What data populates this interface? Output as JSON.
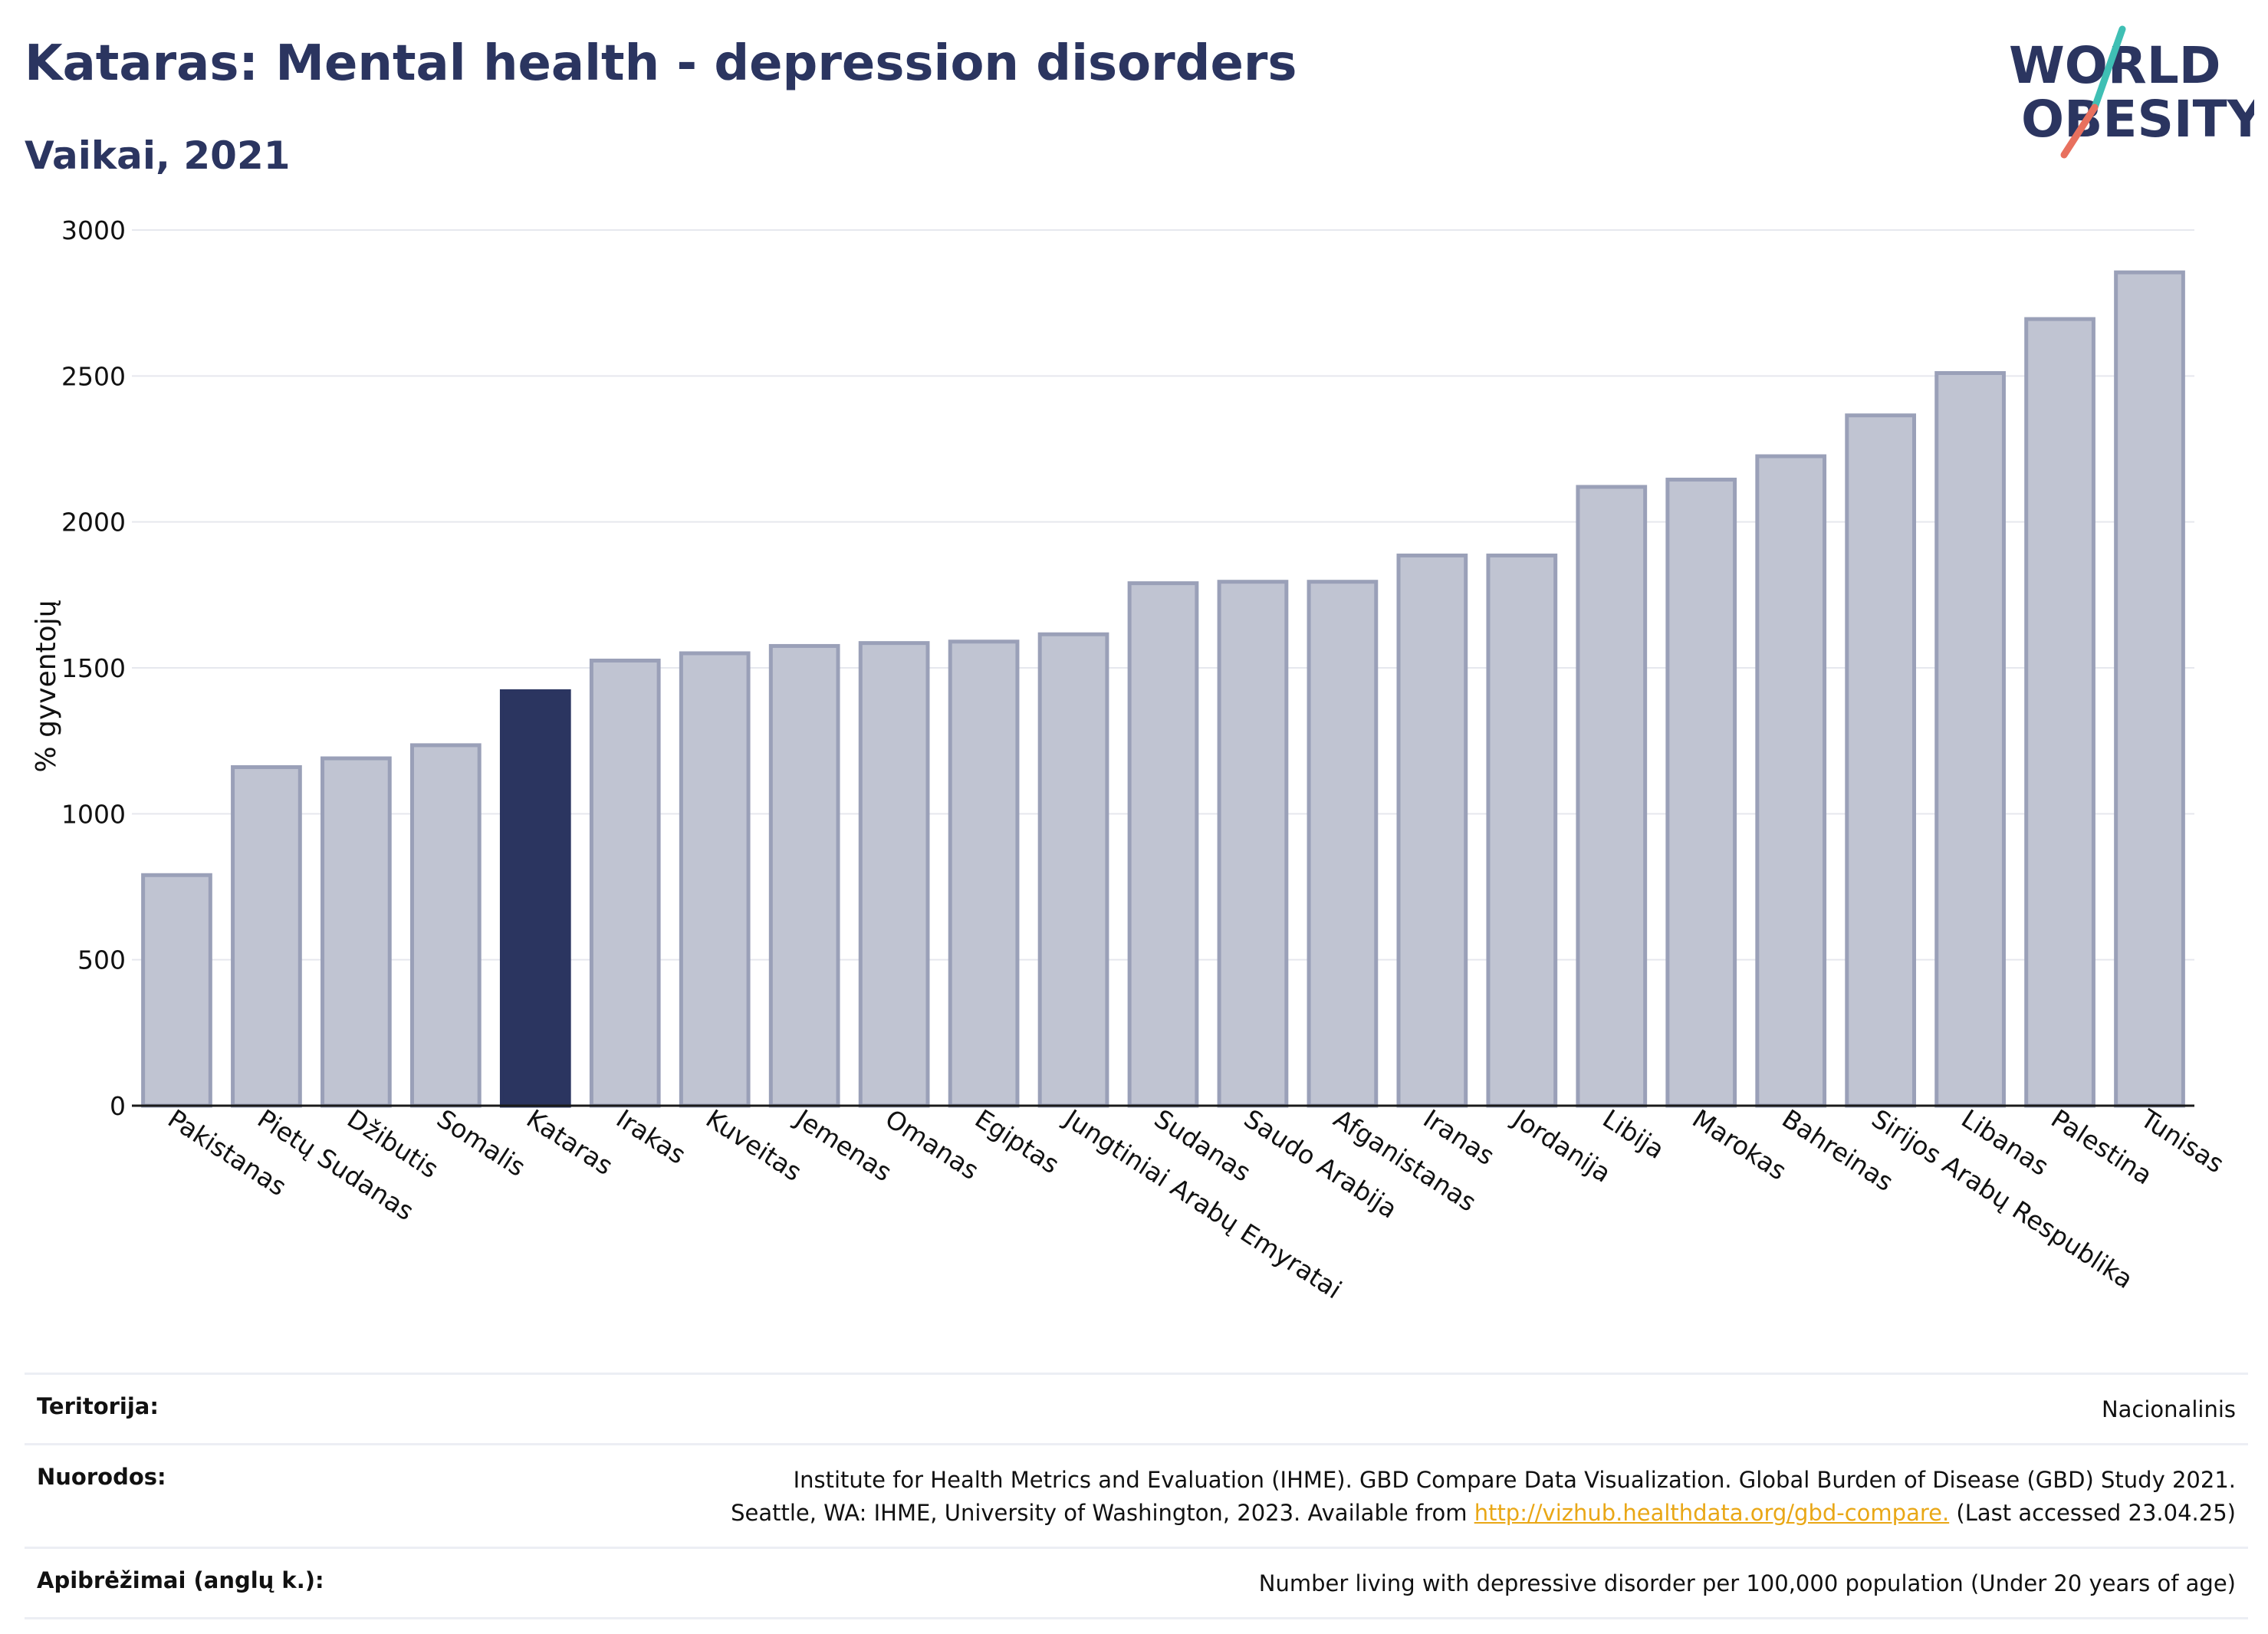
{
  "header": {
    "title": "Kataras: Mental health - depression disorders",
    "subtitle": "Vaikai, 2021"
  },
  "logo": {
    "line1": "WORLD",
    "line2": "OBESITY",
    "accent_teal": "#3fbfb4",
    "accent_coral": "#e8705e"
  },
  "colors": {
    "bar_default": "#c0c4d2",
    "bar_border": "#9aa0b8",
    "bar_highlight": "#2b3560",
    "text_dark": "#2b3560",
    "link": "#e9a716"
  },
  "chart_data": {
    "type": "bar",
    "ylabel": "% gyventojų",
    "xlabel": "",
    "ylim": [
      0,
      3000
    ],
    "yticks": [
      0,
      500,
      1000,
      1500,
      2000,
      2500,
      3000
    ],
    "grid": true,
    "highlight": "Kataras",
    "categories": [
      "Pakistanas",
      "Pietų Sudanas",
      "Džibutis",
      "Somalis",
      "Kataras",
      "Irakas",
      "Kuveitas",
      "Jemenas",
      "Omanas",
      "Egiptas",
      "Jungtiniai Arabų Emyratai",
      "Sudanas",
      "Saudo Arabija",
      "Afganistanas",
      "Iranas",
      "Jordanija",
      "Libija",
      "Marokas",
      "Bahreinas",
      "Sirijos Arabų Respublika",
      "Libanas",
      "Palestina",
      "Tunisas"
    ],
    "values": [
      790,
      1160,
      1190,
      1235,
      1420,
      1525,
      1550,
      1575,
      1585,
      1590,
      1615,
      1790,
      1795,
      1795,
      1885,
      1885,
      2120,
      2145,
      2225,
      2365,
      2510,
      2695,
      2855
    ]
  },
  "footer": {
    "territory_label": "Teritorija:",
    "territory_value": "Nacionalinis",
    "refs_label": "Nuorodos:",
    "refs_line1": "Institute for Health Metrics and Evaluation (IHME). GBD Compare Data Visualization. Global Burden of Disease (GBD) Study 2021.",
    "refs_line2_pre": "Seattle, WA: IHME, University of Washington, 2023. Available from ",
    "refs_link": "http://vizhub.healthdata.org/gbd-compare.",
    "refs_line2_post": " (Last accessed 23.04.25)",
    "defs_label": "Apibrėžimai (anglų k.):",
    "defs_value": "Number living with depressive disorder per 100,000 population (Under 20 years of age)"
  }
}
